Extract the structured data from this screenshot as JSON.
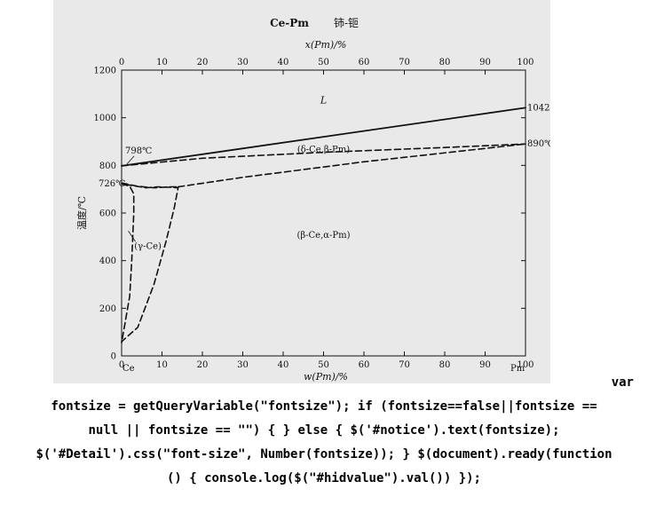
{
  "chart_data": {
    "type": "phase-diagram",
    "title": "Ce-Pm",
    "title_cn": "铈-钷",
    "top_axis": {
      "label": "x(Pm)/%",
      "range": [
        0,
        100
      ],
      "ticks": [
        0,
        10,
        20,
        30,
        40,
        50,
        60,
        70,
        80,
        90,
        100
      ]
    },
    "bottom_axis": {
      "label": "w(Pm)/%",
      "range": [
        0,
        100
      ],
      "ticks": [
        0,
        10,
        20,
        30,
        40,
        50,
        60,
        70,
        80,
        90,
        100
      ]
    },
    "y_axis": {
      "label": "温度/℃",
      "range": [
        0,
        1200
      ],
      "ticks": [
        0,
        200,
        400,
        600,
        800,
        1000,
        1200
      ]
    },
    "element_labels": {
      "left": "Ce",
      "right": "Pm"
    },
    "temperature_labels": [
      {
        "text": "798℃",
        "x": 0,
        "y": 798
      },
      {
        "text": "726℃",
        "x": 0,
        "y": 726
      },
      {
        "text": "1042℃",
        "x": 100,
        "y": 1042
      },
      {
        "text": "890℃",
        "x": 100,
        "y": 890
      }
    ],
    "region_labels": [
      {
        "text": "L",
        "x": 50,
        "y": 1060
      },
      {
        "text": "(δ-Ce,β-Pm)",
        "x": 50,
        "y": 855
      },
      {
        "text": "(β-Ce,α-Pm)",
        "x": 50,
        "y": 495
      },
      {
        "text": "(γ-Ce)",
        "x": 6.5,
        "y": 450
      }
    ],
    "series": [
      {
        "style": "solid",
        "points": [
          [
            0,
            798
          ],
          [
            100,
            1042
          ]
        ]
      },
      {
        "style": "dashed",
        "points": [
          [
            0,
            798
          ],
          [
            20,
            830
          ],
          [
            50,
            855
          ],
          [
            80,
            875
          ],
          [
            100,
            890
          ]
        ]
      },
      {
        "style": "dashed",
        "points": [
          [
            14,
            710
          ],
          [
            30,
            750
          ],
          [
            60,
            815
          ],
          [
            100,
            890
          ]
        ]
      },
      {
        "style": "dashed",
        "points": [
          [
            0,
            726
          ],
          [
            4,
            712
          ],
          [
            8,
            706
          ],
          [
            12,
            710
          ],
          [
            14,
            710
          ]
        ]
      },
      {
        "style": "dashed",
        "points": [
          [
            0,
            722
          ],
          [
            2,
            713
          ],
          [
            3,
            680
          ],
          [
            3,
            600
          ],
          [
            2.5,
            400
          ],
          [
            2,
            250
          ],
          [
            0,
            55
          ]
        ]
      },
      {
        "style": "dashed",
        "points": [
          [
            1,
            720
          ],
          [
            6,
            706
          ],
          [
            9,
            710
          ],
          [
            12,
            708
          ],
          [
            14,
            706
          ],
          [
            13,
            620
          ],
          [
            11,
            480
          ],
          [
            8,
            300
          ],
          [
            4,
            120
          ],
          [
            0,
            60
          ]
        ]
      }
    ]
  },
  "code_text": [
    "var",
    "fontsize = getQueryVariable(\"fontsize\"); if (fontsize==false||fontsize ==",
    "null || fontsize == \"\") { } else { $('#notice').text(fontsize);",
    "$('#Detail').css(\"font-size\", Number(fontsize)); } $(document).ready(function",
    "() { console.log($(\"#hidvalue\").val()) });"
  ]
}
